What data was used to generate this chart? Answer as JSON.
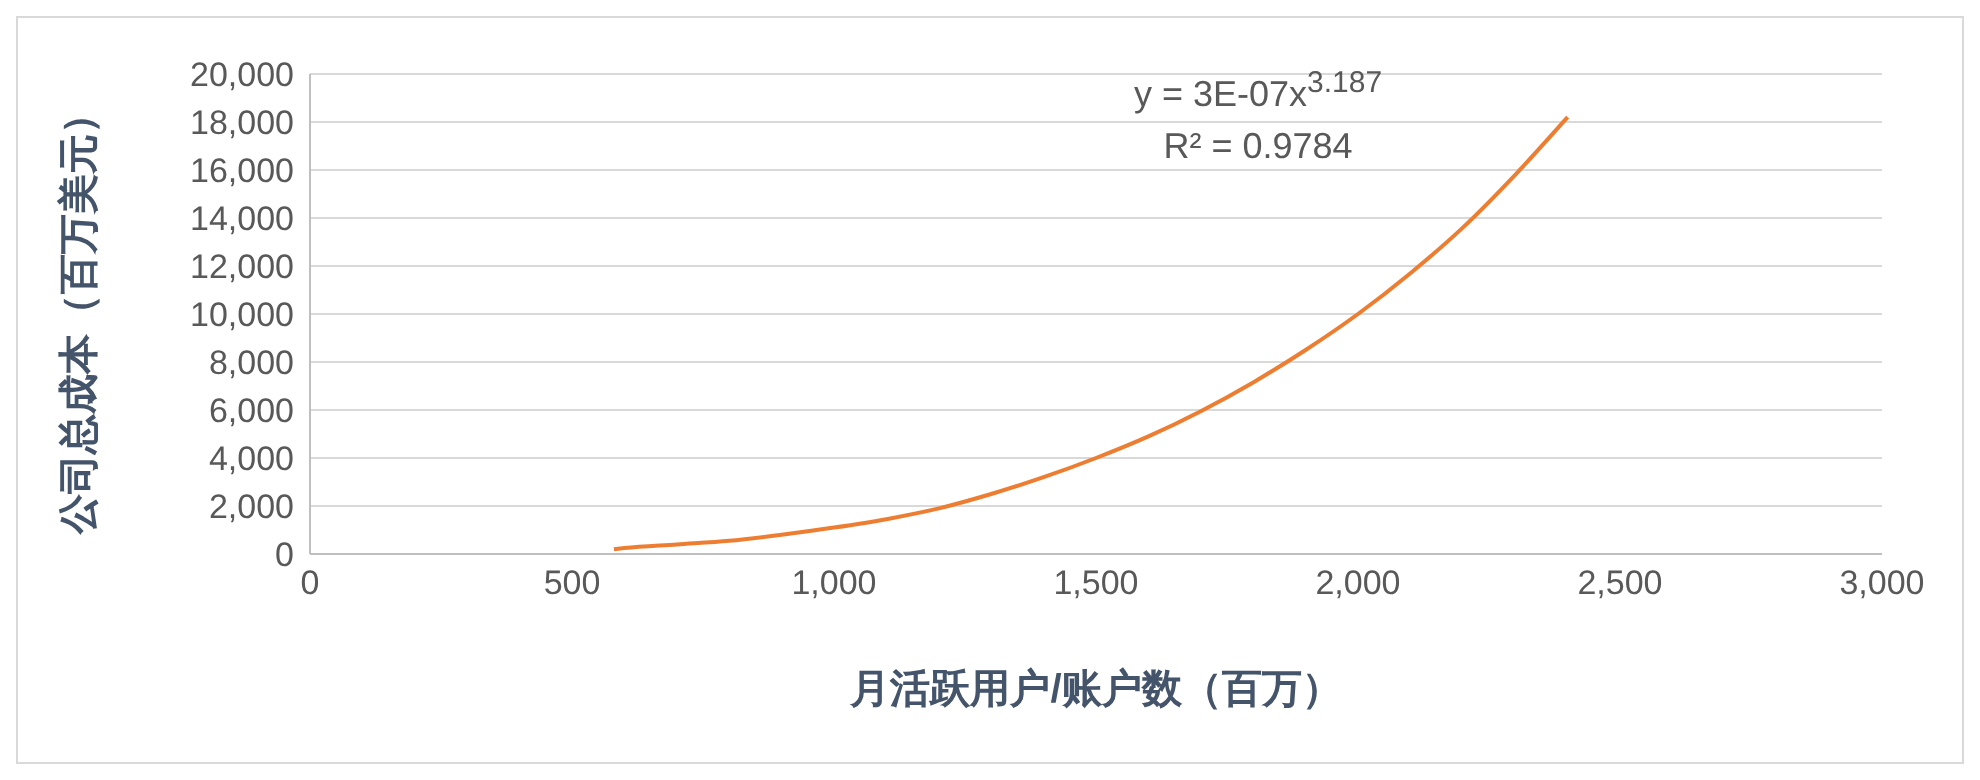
{
  "chart_data": {
    "type": "line",
    "xlabel": "月活跃用户/账户数（百万）",
    "ylabel": "公司总成本（百万美元）",
    "x": [
      580,
      600,
      700,
      800,
      900,
      1000,
      1100,
      1200,
      1300,
      1400,
      1500,
      1600,
      1700,
      1800,
      1900,
      2000,
      2100,
      2200,
      2300,
      2400
    ],
    "series": [
      {
        "color": "#ed7d31",
        "values": [
          200,
          250,
          400,
          550,
          800,
          1100,
          1450,
          1900,
          2500,
          3200,
          4000,
          4900,
          5950,
          7150,
          8500,
          10000,
          11700,
          13600,
          15800,
          18200
        ]
      }
    ],
    "xlim": [
      0,
      3000
    ],
    "xticks": [
      0,
      500,
      {
        "value": 1000,
        "label": "1,000"
      },
      {
        "value": 1500,
        "label": "1,500"
      },
      {
        "value": 2000,
        "label": "2,000"
      },
      {
        "value": 2500,
        "label": "2,500"
      },
      {
        "value": 3000,
        "label": "3,000"
      }
    ],
    "ylim": [
      0,
      20000
    ],
    "yticks": [
      0,
      {
        "value": 2000,
        "label": "2,000"
      },
      {
        "value": 4000,
        "label": "4,000"
      },
      {
        "value": 6000,
        "label": "6,000"
      },
      {
        "value": 8000,
        "label": "8,000"
      },
      {
        "value": 10000,
        "label": "10,000"
      },
      {
        "value": 12000,
        "label": "12,000"
      },
      {
        "value": 14000,
        "label": "14,000"
      },
      {
        "value": 16000,
        "label": "16,000"
      },
      {
        "value": 18000,
        "label": "18,000"
      },
      {
        "value": 20000,
        "label": "20,000"
      }
    ],
    "annotations": [
      "y = 3E-07x$^{3.187}$",
      "R² = 0.9784"
    ],
    "grid": "y",
    "marker": "none",
    "line_style": "solid"
  }
}
